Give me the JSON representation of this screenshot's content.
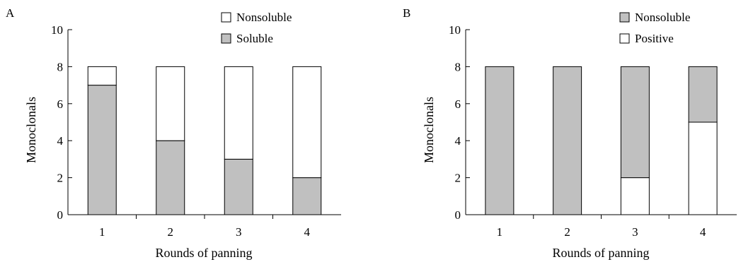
{
  "colors": {
    "gray": "#c0c0c0",
    "white": "#ffffff",
    "stroke": "#000000"
  },
  "chart_data": [
    {
      "type": "bar",
      "stacked": true,
      "panel_label": "A",
      "categories": [
        "1",
        "2",
        "3",
        "4"
      ],
      "xlabel": "Rounds of panning",
      "ylabel": "Monoclonals",
      "ylim": [
        0,
        10
      ],
      "yticks": [
        "0",
        "2",
        "4",
        "6",
        "8",
        "10"
      ],
      "legend_position": "top-right",
      "series": [
        {
          "name": "Soluble",
          "color": "gray",
          "values": [
            7,
            4,
            3,
            2
          ]
        },
        {
          "name": "Nonsoluble",
          "color": "white",
          "values": [
            1,
            4,
            5,
            6
          ]
        }
      ],
      "legend_order": [
        "Nonsoluble",
        "Soluble"
      ]
    },
    {
      "type": "bar",
      "stacked": true,
      "panel_label": "B",
      "categories": [
        "1",
        "2",
        "3",
        "4"
      ],
      "xlabel": "Rounds of panning",
      "ylabel": "Monoclonals",
      "ylim": [
        0,
        10
      ],
      "yticks": [
        "0",
        "2",
        "4",
        "6",
        "8",
        "10"
      ],
      "legend_position": "top-right",
      "series": [
        {
          "name": "Positive",
          "color": "white",
          "values": [
            0,
            0,
            2,
            5
          ]
        },
        {
          "name": "Nonsoluble",
          "color": "gray",
          "values": [
            8,
            8,
            6,
            3
          ]
        }
      ],
      "legend_order": [
        "Nonsoluble",
        "Positive"
      ]
    }
  ]
}
